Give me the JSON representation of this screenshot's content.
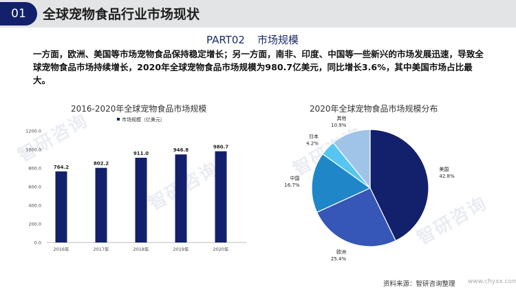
{
  "header": {
    "badge": "01",
    "title": "全球宠物食品行业市场现状"
  },
  "section": {
    "part": "PART02",
    "name": "市场规模"
  },
  "intro": "一方面，欧洲、美国等市场宠物食品保持稳定增长；另一方面，南非、印度、中国等一些新兴的市场发展迅速，导致全球宠物食品市场持续增长，2020年全球宠物食品市场规模为980.7亿美元，同比增长3.6%，其中美国市场占比最大。",
  "footer": {
    "source": "资料来源：智研咨询整理",
    "site": "www.chyxx.com"
  },
  "colors": {
    "bar": "#13206b",
    "pie": [
      "#13206b",
      "#3656b8",
      "#1f87c8",
      "#56c6f0",
      "#9fc4e7"
    ]
  },
  "chart_data": [
    {
      "type": "bar",
      "title": "2016-2020年全球宠物食品市场规模",
      "categories": [
        "2016年",
        "2017年",
        "2018年",
        "2019年",
        "2020年"
      ],
      "series": [
        {
          "name": "市场规模（亿美元）",
          "values": [
            764.2,
            802.2,
            911.0,
            946.8,
            980.7
          ]
        }
      ],
      "value_labels": [
        "764.2",
        "802.2",
        "911.0",
        "946.8",
        "980.7"
      ],
      "ylim": [
        0,
        1200
      ],
      "yticks": [
        "0.0",
        "200.0",
        "400.0",
        "600.0",
        "800.0",
        "1000.0",
        "1200.0"
      ],
      "legend": "top-center",
      "grid": false
    },
    {
      "type": "pie",
      "title": "2020年全球宠物食品市场规模分布",
      "slices": [
        {
          "label": "美国",
          "value": 42.8,
          "text": "42.8%"
        },
        {
          "label": "欧洲",
          "value": 25.4,
          "text": "25.4%"
        },
        {
          "label": "中国",
          "value": 16.7,
          "text": "16.7%"
        },
        {
          "label": "日本",
          "value": 4.2,
          "text": "4.2%"
        },
        {
          "label": "其他",
          "value": 10.9,
          "text": "10.9%"
        }
      ]
    }
  ]
}
